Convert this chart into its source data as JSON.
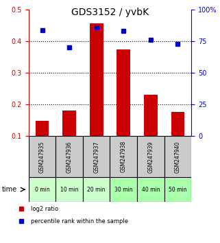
{
  "title": "GDS3152 / yvbK",
  "categories": [
    "GSM247935",
    "GSM247936",
    "GSM247937",
    "GSM247938",
    "GSM247939",
    "GSM247940"
  ],
  "time_labels": [
    "0 min",
    "10 min",
    "20 min",
    "30 min",
    "40 min",
    "50 min"
  ],
  "log2_ratio": [
    0.148,
    0.182,
    0.456,
    0.375,
    0.23,
    0.177
  ],
  "percentile_rank": [
    84,
    70,
    86,
    83,
    76,
    73
  ],
  "ylim_left": [
    0.1,
    0.5
  ],
  "ylim_right": [
    0,
    100
  ],
  "yticks_left": [
    0.1,
    0.2,
    0.3,
    0.4,
    0.5
  ],
  "yticks_right": [
    0,
    25,
    50,
    75,
    100
  ],
  "bar_color": "#cc0000",
  "dot_color": "#0000cc",
  "bar_bottom": 0.1,
  "grid_lines": [
    0.2,
    0.3,
    0.4
  ],
  "gsm_bg_color": "#cccccc",
  "time_bg_colors": [
    "#ccffcc",
    "#ccffcc",
    "#ccffcc",
    "#aaffaa",
    "#aaffaa",
    "#aaffaa"
  ],
  "legend_bar_label": "log2 ratio",
  "legend_dot_label": "percentile rank within the sample",
  "title_color": "#000000",
  "left_axis_color": "#cc0000",
  "right_axis_color": "#0000cc"
}
